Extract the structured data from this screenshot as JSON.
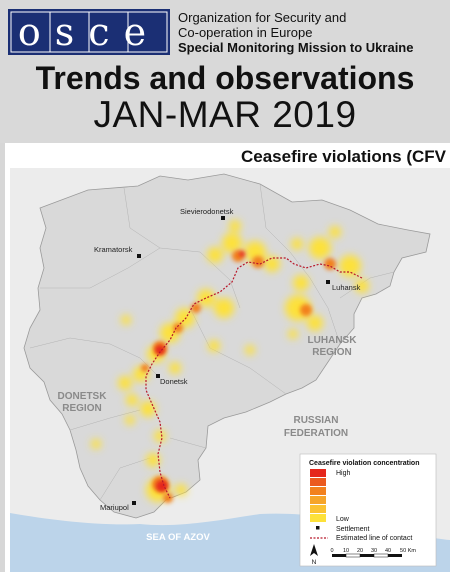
{
  "header": {
    "logo_text": "osce",
    "org_lines": [
      "Organization for Security and",
      "Co-operation in Europe",
      "Special Monitoring Mission to Ukraine"
    ],
    "title": "Trends and observations",
    "subtitle": "JAN-MAR 2019"
  },
  "map": {
    "heading": "Ceasefire violations (CFV",
    "settlements": [
      "Sievierodonetsk",
      "Kramatorsk",
      "Luhansk",
      "Donetsk",
      "Mariupol"
    ],
    "regions": {
      "luhansk": [
        "LUHANSK",
        "REGION"
      ],
      "donetsk": [
        "DONETSK",
        "REGION"
      ],
      "russia": [
        "RUSSIAN",
        "FEDERATION"
      ],
      "sea": "SEA OF AZOV"
    },
    "legend": {
      "title": "Ceasefire violation concentration",
      "high": "High",
      "low": "Low",
      "settlement": "Settlement",
      "contact_line": "Estimated line of contact",
      "scale_ticks": [
        "0",
        "10",
        "20",
        "30",
        "40",
        "50 Km"
      ],
      "north": "N"
    },
    "colors": {
      "land_ukraine": "#d9d9d9",
      "land_russia": "#ececec",
      "sea": "#bcd4ea",
      "high": "#e5261c",
      "mid": "#f2811e",
      "low": "#fde13a",
      "contact_line": "#b8182a"
    }
  }
}
